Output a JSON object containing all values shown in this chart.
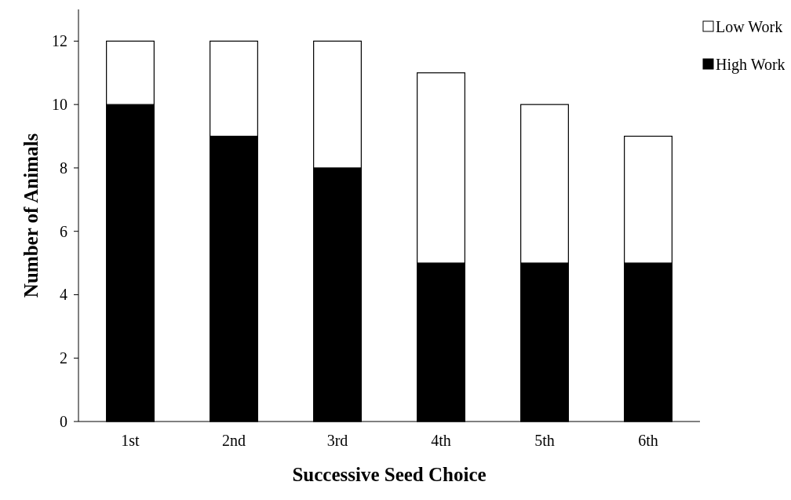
{
  "chart_data": {
    "type": "bar",
    "stacked": true,
    "xlabel": "Successive Seed Choice",
    "ylabel": "Number of Animals",
    "categories": [
      "1st",
      "2nd",
      "3rd",
      "4th",
      "5th",
      "6th"
    ],
    "series": [
      {
        "name": "High Work",
        "color": "#000000",
        "values": [
          10,
          9,
          8,
          5,
          5,
          5
        ]
      },
      {
        "name": "Low Work",
        "color": "#ffffff",
        "values": [
          2,
          3,
          4,
          6,
          5,
          4
        ]
      }
    ],
    "ylim": [
      0,
      13
    ],
    "yticks": [
      0,
      2,
      4,
      6,
      8,
      10,
      12
    ],
    "legend": "top right",
    "grid": false
  }
}
